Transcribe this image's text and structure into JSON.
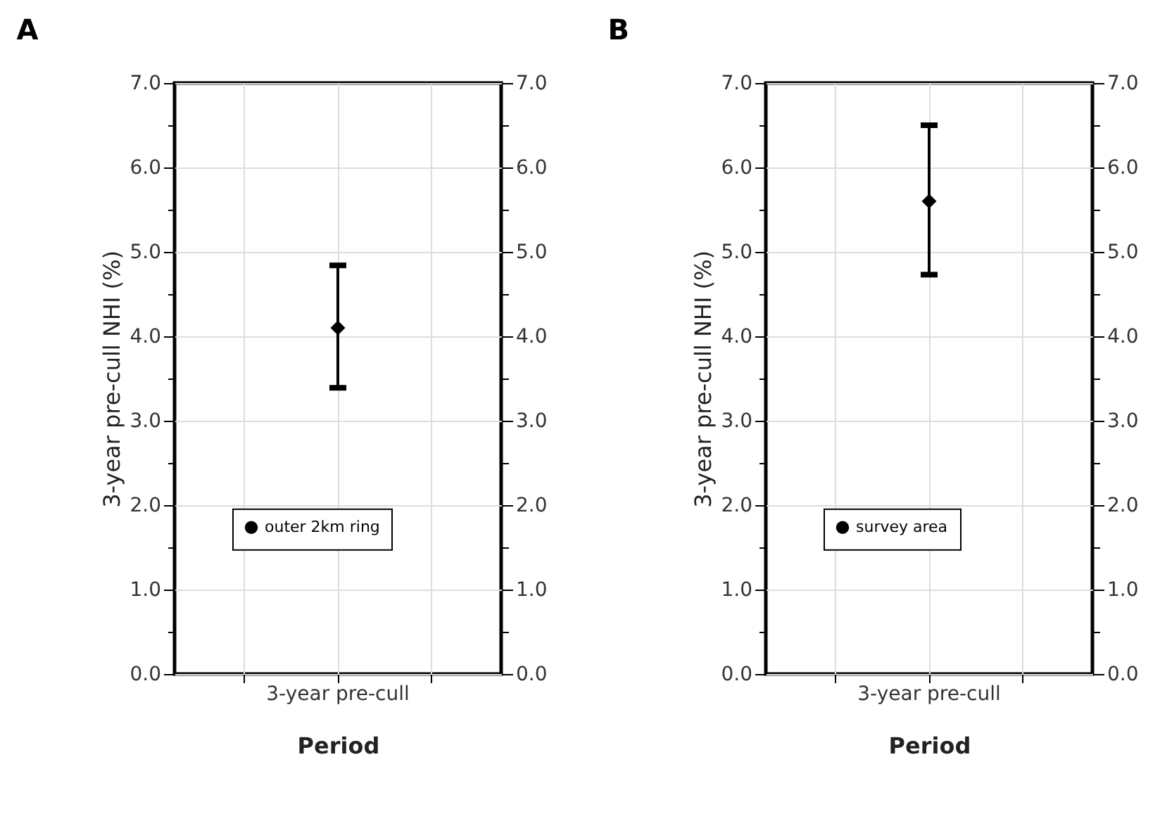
{
  "chart_data": [
    {
      "type": "scatter",
      "title": "A",
      "xlabel": "Period",
      "ylabel": "3-year pre-cull NHI (%)",
      "categories": [
        null,
        "3-year pre-cull",
        null
      ],
      "series": [
        {
          "name": "outer 2km ring",
          "color": "#000000",
          "values": [
            null,
            4.1,
            null
          ],
          "errors": [
            null,
            [
              3.39,
              4.84
            ],
            null
          ]
        }
      ],
      "ylim": [
        0,
        7
      ],
      "yticks": [
        {
          "value": 0,
          "label": "0.0"
        },
        {
          "value": 0.5,
          "label": null
        },
        {
          "value": 1,
          "label": "1.0"
        },
        {
          "value": 1.5,
          "label": null
        },
        {
          "value": 2,
          "label": "2.0"
        },
        {
          "value": 2.5,
          "label": null
        },
        {
          "value": 3,
          "label": "3.0"
        },
        {
          "value": 3.5,
          "label": null
        },
        {
          "value": 4,
          "label": "4.0"
        },
        {
          "value": 4.5,
          "label": null
        },
        {
          "value": 5,
          "label": "5.0"
        },
        {
          "value": 5.5,
          "label": null
        },
        {
          "value": 6,
          "label": "6.0"
        },
        {
          "value": 6.5,
          "label": null
        },
        {
          "value": 7,
          "label": "7.0"
        }
      ],
      "y2lim": [
        0,
        7
      ],
      "y2ticks": [
        {
          "value": 0,
          "label": "0.0"
        },
        {
          "value": 0.5,
          "label": null
        },
        {
          "value": 1,
          "label": "1.0"
        },
        {
          "value": 1.5,
          "label": null
        },
        {
          "value": 2,
          "label": "2.0"
        },
        {
          "value": 2.5,
          "label": null
        },
        {
          "value": 3,
          "label": "3.0"
        },
        {
          "value": 3.5,
          "label": null
        },
        {
          "value": 4,
          "label": "4.0"
        },
        {
          "value": 4.5,
          "label": null
        },
        {
          "value": 5,
          "label": "5.0"
        },
        {
          "value": 5.5,
          "label": null
        },
        {
          "value": 6,
          "label": "6.0"
        },
        {
          "value": 6.5,
          "label": null
        },
        {
          "value": 7,
          "label": "7.0"
        }
      ],
      "grid": true,
      "legend": "bottom",
      "marker": "diamond"
    },
    {
      "type": "scatter",
      "title": "B",
      "xlabel": "Period",
      "ylabel": "3-year pre-cull NHI (%)",
      "categories": [
        null,
        "3-year pre-cull",
        null
      ],
      "series": [
        {
          "name": "survey area",
          "color": "#000000",
          "values": [
            null,
            5.6,
            null
          ],
          "errors": [
            null,
            [
              4.73,
              6.5
            ],
            null
          ]
        }
      ],
      "ylim": [
        0,
        7
      ],
      "yticks": [
        {
          "value": 0,
          "label": "0.0"
        },
        {
          "value": 0.5,
          "label": null
        },
        {
          "value": 1,
          "label": "1.0"
        },
        {
          "value": 1.5,
          "label": null
        },
        {
          "value": 2,
          "label": "2.0"
        },
        {
          "value": 2.5,
          "label": null
        },
        {
          "value": 3,
          "label": "3.0"
        },
        {
          "value": 3.5,
          "label": null
        },
        {
          "value": 4,
          "label": "4.0"
        },
        {
          "value": 4.5,
          "label": null
        },
        {
          "value": 5,
          "label": "5.0"
        },
        {
          "value": 5.5,
          "label": null
        },
        {
          "value": 6,
          "label": "6.0"
        },
        {
          "value": 6.5,
          "label": null
        },
        {
          "value": 7,
          "label": "7.0"
        }
      ],
      "y2lim": [
        0,
        7
      ],
      "y2ticks": [
        {
          "value": 0,
          "label": "0.0"
        },
        {
          "value": 0.5,
          "label": null
        },
        {
          "value": 1,
          "label": "1.0"
        },
        {
          "value": 1.5,
          "label": null
        },
        {
          "value": 2,
          "label": "2.0"
        },
        {
          "value": 2.5,
          "label": null
        },
        {
          "value": 3,
          "label": "3.0"
        },
        {
          "value": 3.5,
          "label": null
        },
        {
          "value": 4,
          "label": "4.0"
        },
        {
          "value": 4.5,
          "label": null
        },
        {
          "value": 5,
          "label": "5.0"
        },
        {
          "value": 5.5,
          "label": null
        },
        {
          "value": 6,
          "label": "6.0"
        },
        {
          "value": 6.5,
          "label": null
        },
        {
          "value": 7,
          "label": "7.0"
        }
      ],
      "grid": true,
      "legend": "bottom",
      "marker": "diamond"
    }
  ]
}
